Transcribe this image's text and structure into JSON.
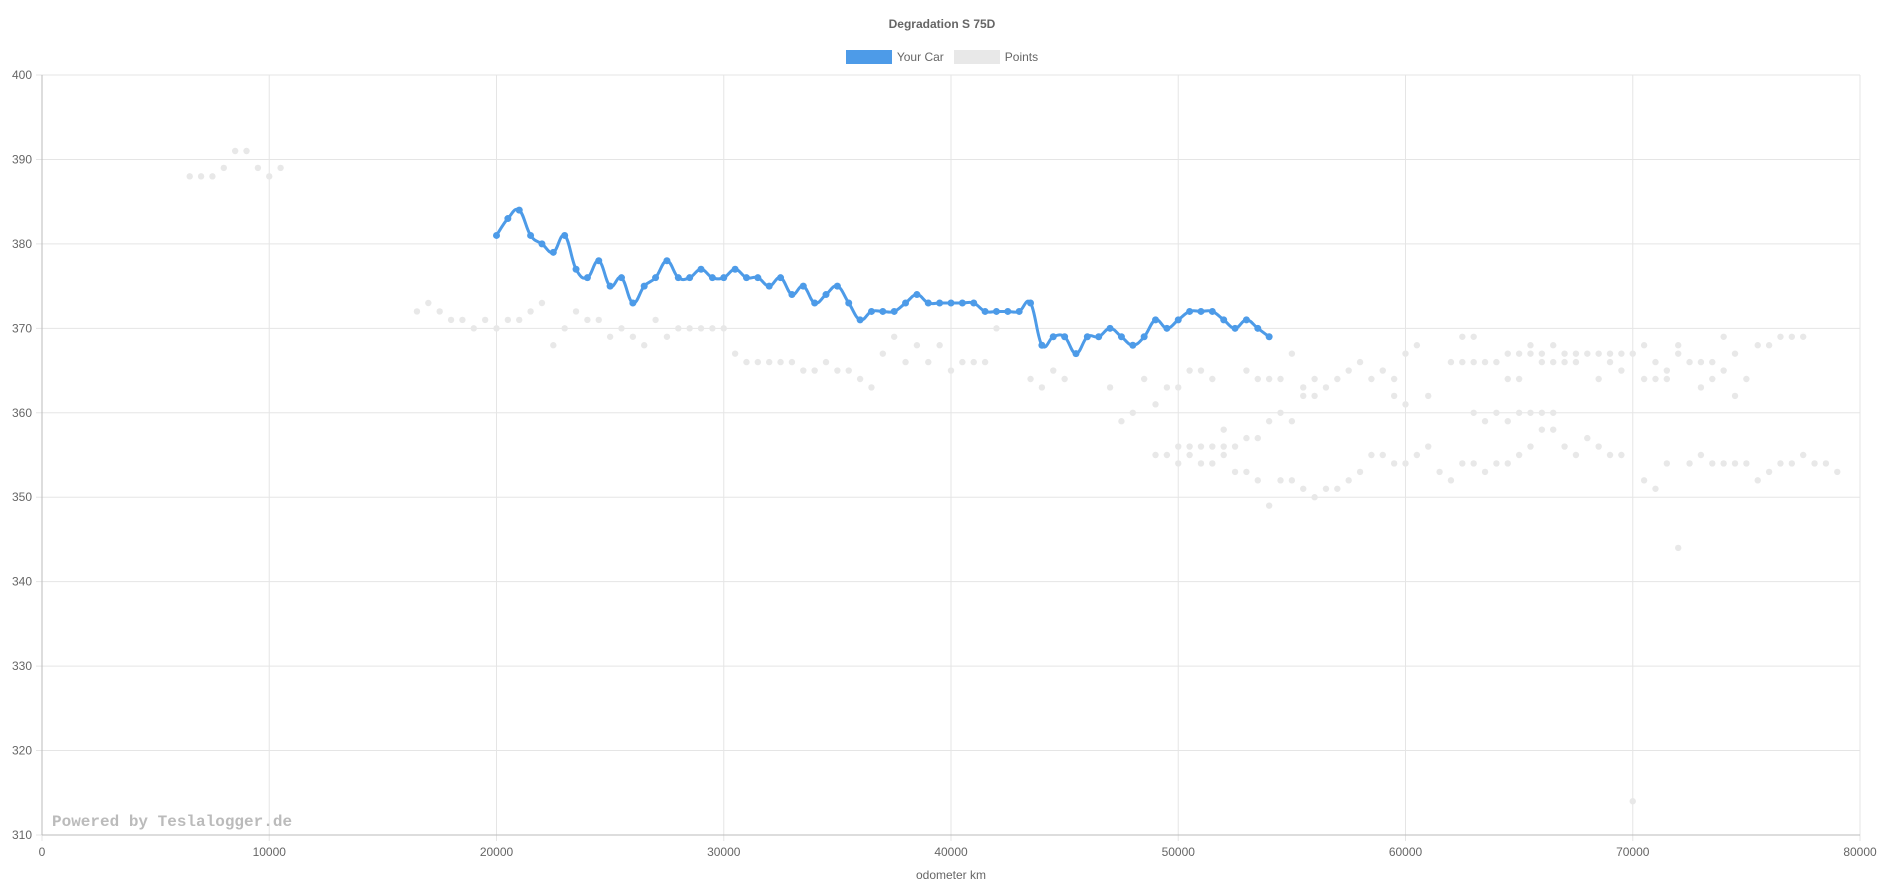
{
  "chart_data": {
    "type": "line",
    "title": "Degradation S 75D",
    "xlabel": "odometer km",
    "ylabel": "",
    "xlim": [
      0,
      80000
    ],
    "ylim": [
      310,
      400
    ],
    "x_ticks": [
      0,
      10000,
      20000,
      30000,
      40000,
      50000,
      60000,
      70000,
      80000
    ],
    "y_ticks": [
      310,
      320,
      330,
      340,
      350,
      360,
      370,
      380,
      390,
      400
    ],
    "grid": true,
    "legend_position": "top-center",
    "watermark": "Powered by Teslalogger.de",
    "series": [
      {
        "name": "Your Car",
        "kind": "line",
        "color": "#4d9be8",
        "points": [
          [
            20000,
            381
          ],
          [
            20500,
            383
          ],
          [
            21000,
            384
          ],
          [
            21500,
            381
          ],
          [
            22000,
            380
          ],
          [
            22500,
            379
          ],
          [
            23000,
            381
          ],
          [
            23500,
            377
          ],
          [
            24000,
            376
          ],
          [
            24500,
            378
          ],
          [
            25000,
            375
          ],
          [
            25500,
            376
          ],
          [
            26000,
            373
          ],
          [
            26500,
            375
          ],
          [
            27000,
            376
          ],
          [
            27500,
            378
          ],
          [
            28000,
            376
          ],
          [
            28500,
            376
          ],
          [
            29000,
            377
          ],
          [
            29500,
            376
          ],
          [
            30000,
            376
          ],
          [
            30500,
            377
          ],
          [
            31000,
            376
          ],
          [
            31500,
            376
          ],
          [
            32000,
            375
          ],
          [
            32500,
            376
          ],
          [
            33000,
            374
          ],
          [
            33500,
            375
          ],
          [
            34000,
            373
          ],
          [
            34500,
            374
          ],
          [
            35000,
            375
          ],
          [
            35500,
            373
          ],
          [
            36000,
            371
          ],
          [
            36500,
            372
          ],
          [
            37000,
            372
          ],
          [
            37500,
            372
          ],
          [
            38000,
            373
          ],
          [
            38500,
            374
          ],
          [
            39000,
            373
          ],
          [
            39500,
            373
          ],
          [
            40000,
            373
          ],
          [
            40500,
            373
          ],
          [
            41000,
            373
          ],
          [
            41500,
            372
          ],
          [
            42000,
            372
          ],
          [
            42500,
            372
          ],
          [
            43000,
            372
          ],
          [
            43500,
            373
          ],
          [
            44000,
            368
          ],
          [
            44500,
            369
          ],
          [
            45000,
            369
          ],
          [
            45500,
            367
          ],
          [
            46000,
            369
          ],
          [
            46500,
            369
          ],
          [
            47000,
            370
          ],
          [
            47500,
            369
          ],
          [
            48000,
            368
          ],
          [
            48500,
            369
          ],
          [
            49000,
            371
          ],
          [
            49500,
            370
          ],
          [
            50000,
            371
          ],
          [
            50500,
            372
          ],
          [
            51000,
            372
          ],
          [
            51500,
            372
          ],
          [
            52000,
            371
          ],
          [
            52500,
            370
          ],
          [
            53000,
            371
          ],
          [
            53500,
            370
          ],
          [
            54000,
            369
          ]
        ]
      },
      {
        "name": "Points",
        "kind": "scatter",
        "color": "#e8e8e8",
        "points": [
          [
            6500,
            388
          ],
          [
            7000,
            388
          ],
          [
            7500,
            388
          ],
          [
            8000,
            389
          ],
          [
            8500,
            391
          ],
          [
            9000,
            391
          ],
          [
            9500,
            389
          ],
          [
            10000,
            388
          ],
          [
            10500,
            389
          ],
          [
            16500,
            372
          ],
          [
            17000,
            373
          ],
          [
            17500,
            372
          ],
          [
            18000,
            371
          ],
          [
            18500,
            371
          ],
          [
            19000,
            370
          ],
          [
            19500,
            371
          ],
          [
            20000,
            370
          ],
          [
            20500,
            371
          ],
          [
            21000,
            371
          ],
          [
            21500,
            372
          ],
          [
            22000,
            373
          ],
          [
            22500,
            368
          ],
          [
            23000,
            370
          ],
          [
            23500,
            372
          ],
          [
            24000,
            371
          ],
          [
            24500,
            371
          ],
          [
            25000,
            369
          ],
          [
            25500,
            370
          ],
          [
            26000,
            369
          ],
          [
            26500,
            368
          ],
          [
            27000,
            371
          ],
          [
            27500,
            369
          ],
          [
            28000,
            370
          ],
          [
            28500,
            370
          ],
          [
            29000,
            370
          ],
          [
            29500,
            370
          ],
          [
            30000,
            370
          ],
          [
            30500,
            367
          ],
          [
            31000,
            366
          ],
          [
            31500,
            366
          ],
          [
            32000,
            366
          ],
          [
            32500,
            366
          ],
          [
            33000,
            366
          ],
          [
            33500,
            365
          ],
          [
            34000,
            365
          ],
          [
            34500,
            366
          ],
          [
            35000,
            365
          ],
          [
            35500,
            365
          ],
          [
            36000,
            364
          ],
          [
            36500,
            363
          ],
          [
            37000,
            367
          ],
          [
            37500,
            369
          ],
          [
            38000,
            366
          ],
          [
            38500,
            368
          ],
          [
            39000,
            366
          ],
          [
            39500,
            368
          ],
          [
            40000,
            365
          ],
          [
            40500,
            366
          ],
          [
            41000,
            366
          ],
          [
            41500,
            366
          ],
          [
            42000,
            370
          ],
          [
            43500,
            364
          ],
          [
            44000,
            363
          ],
          [
            44500,
            365
          ],
          [
            45000,
            364
          ],
          [
            47000,
            363
          ],
          [
            47500,
            359
          ],
          [
            48000,
            360
          ],
          [
            48500,
            364
          ],
          [
            49000,
            361
          ],
          [
            49000,
            355
          ],
          [
            49500,
            363
          ],
          [
            49500,
            355
          ],
          [
            50000,
            363
          ],
          [
            50000,
            356
          ],
          [
            50000,
            354
          ],
          [
            50500,
            365
          ],
          [
            50500,
            356
          ],
          [
            50500,
            355
          ],
          [
            51000,
            365
          ],
          [
            51000,
            356
          ],
          [
            51000,
            354
          ],
          [
            51500,
            364
          ],
          [
            51500,
            356
          ],
          [
            51500,
            354
          ],
          [
            52000,
            358
          ],
          [
            52000,
            356
          ],
          [
            52000,
            355
          ],
          [
            52500,
            356
          ],
          [
            52500,
            353
          ],
          [
            53000,
            365
          ],
          [
            53000,
            357
          ],
          [
            53000,
            353
          ],
          [
            53500,
            364
          ],
          [
            53500,
            357
          ],
          [
            53500,
            352
          ],
          [
            54000,
            364
          ],
          [
            54000,
            359
          ],
          [
            54000,
            349
          ],
          [
            54500,
            364
          ],
          [
            54500,
            360
          ],
          [
            54500,
            352
          ],
          [
            55000,
            367
          ],
          [
            55000,
            359
          ],
          [
            55000,
            352
          ],
          [
            55500,
            363
          ],
          [
            55500,
            362
          ],
          [
            55500,
            351
          ],
          [
            56000,
            364
          ],
          [
            56000,
            362
          ],
          [
            56000,
            350
          ],
          [
            56500,
            363
          ],
          [
            56500,
            351
          ],
          [
            57000,
            364
          ],
          [
            57000,
            351
          ],
          [
            57500,
            365
          ],
          [
            57500,
            352
          ],
          [
            58000,
            366
          ],
          [
            58000,
            353
          ],
          [
            58500,
            364
          ],
          [
            58500,
            355
          ],
          [
            59000,
            365
          ],
          [
            59000,
            355
          ],
          [
            59500,
            364
          ],
          [
            59500,
            362
          ],
          [
            59500,
            354
          ],
          [
            60000,
            367
          ],
          [
            60000,
            361
          ],
          [
            60000,
            354
          ],
          [
            60500,
            368
          ],
          [
            60500,
            355
          ],
          [
            61000,
            362
          ],
          [
            61000,
            356
          ],
          [
            61500,
            353
          ],
          [
            62000,
            366
          ],
          [
            62000,
            352
          ],
          [
            62500,
            369
          ],
          [
            62500,
            366
          ],
          [
            62500,
            354
          ],
          [
            63000,
            369
          ],
          [
            63000,
            366
          ],
          [
            63000,
            360
          ],
          [
            63000,
            354
          ],
          [
            63500,
            366
          ],
          [
            63500,
            359
          ],
          [
            63500,
            353
          ],
          [
            64000,
            366
          ],
          [
            64000,
            360
          ],
          [
            64000,
            354
          ],
          [
            64500,
            367
          ],
          [
            64500,
            364
          ],
          [
            64500,
            359
          ],
          [
            64500,
            354
          ],
          [
            65000,
            367
          ],
          [
            65000,
            364
          ],
          [
            65000,
            360
          ],
          [
            65000,
            355
          ],
          [
            65500,
            368
          ],
          [
            65500,
            367
          ],
          [
            65500,
            360
          ],
          [
            65500,
            356
          ],
          [
            66000,
            367
          ],
          [
            66000,
            366
          ],
          [
            66000,
            360
          ],
          [
            66000,
            358
          ],
          [
            66500,
            368
          ],
          [
            66500,
            366
          ],
          [
            66500,
            360
          ],
          [
            66500,
            358
          ],
          [
            67000,
            367
          ],
          [
            67000,
            366
          ],
          [
            67000,
            356
          ],
          [
            67500,
            367
          ],
          [
            67500,
            366
          ],
          [
            67500,
            355
          ],
          [
            68000,
            367
          ],
          [
            68000,
            357
          ],
          [
            68500,
            367
          ],
          [
            68500,
            364
          ],
          [
            68500,
            356
          ],
          [
            69000,
            367
          ],
          [
            69000,
            366
          ],
          [
            69000,
            355
          ],
          [
            69500,
            367
          ],
          [
            69500,
            365
          ],
          [
            69500,
            355
          ],
          [
            70000,
            367
          ],
          [
            70000,
            314
          ],
          [
            70500,
            368
          ],
          [
            70500,
            364
          ],
          [
            70500,
            352
          ],
          [
            71000,
            366
          ],
          [
            71000,
            364
          ],
          [
            71000,
            351
          ],
          [
            71500,
            365
          ],
          [
            71500,
            364
          ],
          [
            71500,
            354
          ],
          [
            72000,
            368
          ],
          [
            72000,
            367
          ],
          [
            72000,
            344
          ],
          [
            72500,
            366
          ],
          [
            72500,
            354
          ],
          [
            73000,
            366
          ],
          [
            73000,
            363
          ],
          [
            73000,
            355
          ],
          [
            73500,
            366
          ],
          [
            73500,
            364
          ],
          [
            73500,
            354
          ],
          [
            74000,
            369
          ],
          [
            74000,
            365
          ],
          [
            74000,
            354
          ],
          [
            74500,
            367
          ],
          [
            74500,
            362
          ],
          [
            74500,
            354
          ],
          [
            75000,
            364
          ],
          [
            75000,
            354
          ],
          [
            75500,
            368
          ],
          [
            75500,
            352
          ],
          [
            76000,
            368
          ],
          [
            76000,
            353
          ],
          [
            76500,
            369
          ],
          [
            76500,
            354
          ],
          [
            77000,
            369
          ],
          [
            77000,
            354
          ],
          [
            77500,
            369
          ],
          [
            77500,
            355
          ],
          [
            78000,
            354
          ],
          [
            78500,
            354
          ],
          [
            79000,
            353
          ]
        ]
      }
    ]
  }
}
